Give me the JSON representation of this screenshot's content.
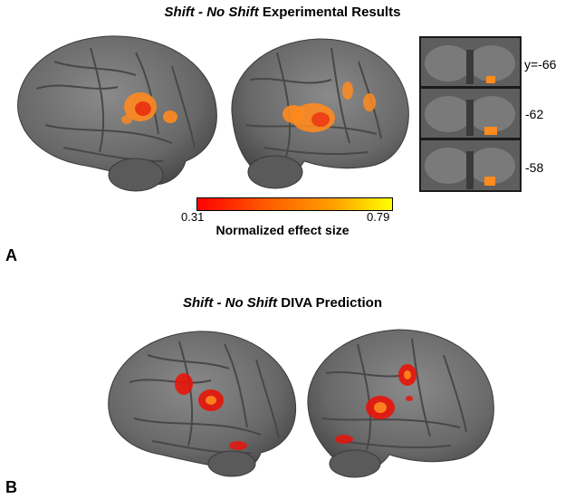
{
  "panel_a": {
    "letter": "A",
    "title_italic": "Shift - No Shift",
    "title_rest": " Experimental Results",
    "slices": [
      "y=-66",
      "-62",
      "-58"
    ],
    "colorbar": {
      "min": "0.31",
      "max": "0.79",
      "label": "Normalized effect size",
      "colors": [
        "#ff0000",
        "#ff5a00",
        "#ffa000",
        "#ffff00"
      ]
    }
  },
  "panel_b": {
    "letter": "B",
    "title_italic": "Shift - No Shift",
    "title_rest": " DIVA Prediction"
  },
  "colors": {
    "brain": "#6e6e6e",
    "activation_red": "#e8140a",
    "activation_orange": "#ff8a1e"
  }
}
